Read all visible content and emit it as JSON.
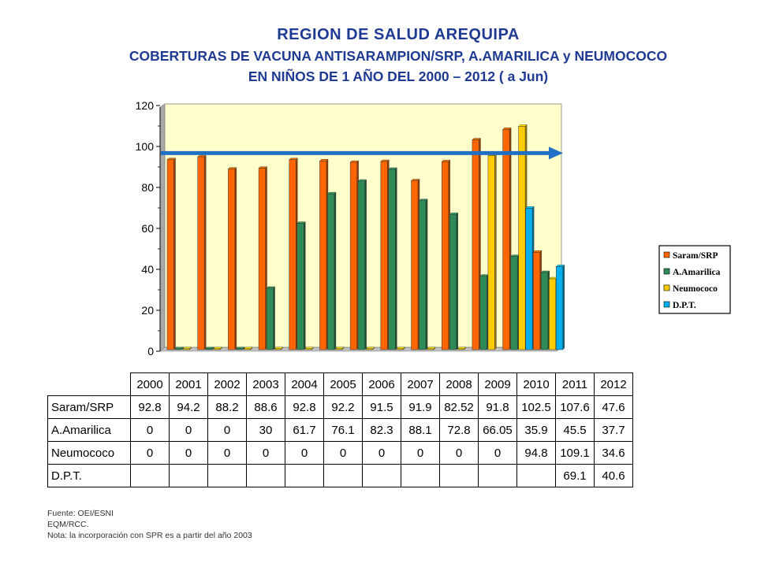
{
  "header": {
    "title": "REGION DE SALUD AREQUIPA",
    "subtitle_line1": "COBERTURAS DE VACUNA ANTISARAMPION/SRP,  A.AMARILICA y NEUMOCOCO",
    "subtitle_line2": "EN NIÑOS DE 1 AÑO    DEL 2000 – 2012 ( a Jun)"
  },
  "colors": {
    "plot_bg": "#ffffcc",
    "target_arrow": "#1f6fc5",
    "saram": "#ff6600",
    "amarilica": "#2e8b57",
    "neumococo": "#ffcc00",
    "dpt": "#00b0f0"
  },
  "chart_data": {
    "type": "bar",
    "categories": [
      "2000",
      "2001",
      "2002",
      "2003",
      "2004",
      "2005",
      "2006",
      "2007",
      "2008",
      "2009",
      "2010",
      "2011",
      "2012"
    ],
    "series": [
      {
        "name": "Saram/SRP",
        "values": [
          92.8,
          94.2,
          88.2,
          88.6,
          92.8,
          92.2,
          91.5,
          91.9,
          82.52,
          91.8,
          102.5,
          107.6,
          47.6
        ]
      },
      {
        "name": "A.Amarilica",
        "values": [
          0,
          0,
          0,
          30,
          61.7,
          76.1,
          82.3,
          88.1,
          72.8,
          66.05,
          35.9,
          45.5,
          37.7
        ]
      },
      {
        "name": "Neumococo",
        "values": [
          0,
          0,
          0,
          0,
          0,
          0,
          0,
          0,
          0,
          0,
          94.8,
          109.1,
          34.6
        ]
      },
      {
        "name": "D.P.T.",
        "values": [
          null,
          null,
          null,
          null,
          null,
          null,
          null,
          null,
          null,
          null,
          null,
          69.1,
          40.6
        ]
      }
    ],
    "y_ticks": [
      "0",
      "20",
      "40",
      "60",
      "80",
      "100",
      "120"
    ],
    "ylim": [
      0,
      120
    ],
    "target_line": 96,
    "legend_position": "right",
    "grid": false
  },
  "table": {
    "years": [
      "2000",
      "2001",
      "2002",
      "2003",
      "2004",
      "2005",
      "2006",
      "2007",
      "2008",
      "2009",
      "2010",
      "2011",
      "2012"
    ],
    "rows": [
      {
        "label": "Saram/SRP",
        "cells": [
          "92.8",
          "94.2",
          "88.2",
          "88.6",
          "92.8",
          "92.2",
          "91.5",
          "91.9",
          "82.52",
          "91.8",
          "102.5",
          "107.6",
          "47.6"
        ]
      },
      {
        "label": "A.Amarilica",
        "cells": [
          "0",
          "0",
          "0",
          "30",
          "61.7",
          "76.1",
          "82.3",
          "88.1",
          "72.8",
          "66.05",
          "35.9",
          "45.5",
          "37.7"
        ]
      },
      {
        "label": "Neumococo",
        "cells": [
          "0",
          "0",
          "0",
          "0",
          "0",
          "0",
          "0",
          "0",
          "0",
          "0",
          "94.8",
          "109.1",
          "34.6"
        ]
      },
      {
        "label": "D.P.T.",
        "cells": [
          "",
          "",
          "",
          "",
          "",
          "",
          "",
          "",
          "",
          "",
          "",
          "69.1",
          "40.6"
        ]
      }
    ]
  },
  "footer": {
    "line1": "Fuente: OEI/ESNI",
    "line2": "EQM/RCC.",
    "line3": "Nota:  la incorporación con SPR es a partir del año 2003"
  }
}
